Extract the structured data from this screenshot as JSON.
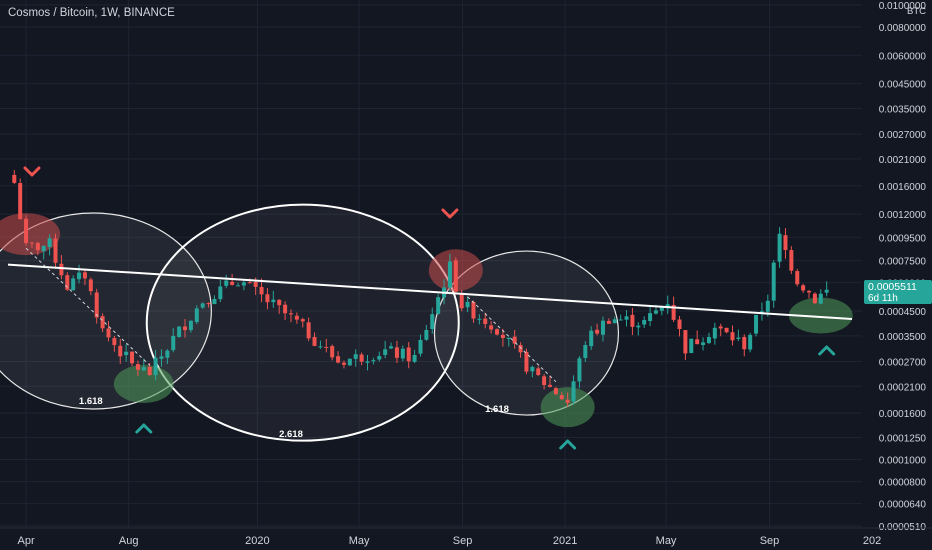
{
  "header": {
    "symbol": "Cosmos / Bitcoin",
    "interval": "1W",
    "exchange": "BINANCE",
    "separator": ", "
  },
  "colors": {
    "background": "#131722",
    "grid": "#1f2433",
    "up": "#26a69a",
    "down": "#ef5350",
    "text": "#b2b5be",
    "axis_text": "#d1d4dc",
    "price_tag": "#26a69a",
    "trendline": "#ffffff",
    "marker_red": "#ef5350",
    "marker_green": "#26a69a",
    "zone_red": "#c94c4c",
    "zone_green": "#4f9a5a"
  },
  "chart_data": {
    "type": "candlestick",
    "title": "Cosmos / Bitcoin, 1W, BINANCE",
    "y_scale": "log",
    "y_unit": "BTC",
    "ylim": [
      5e-05,
      0.0105
    ],
    "xlim": [
      "2019-03-01",
      "2021-12-20"
    ],
    "x_ticks": [
      {
        "label": "Apr",
        "date": "2019-04-01"
      },
      {
        "label": "Aug",
        "date": "2019-08-01"
      },
      {
        "label": "2020",
        "date": "2020-01-01"
      },
      {
        "label": "May",
        "date": "2020-05-01"
      },
      {
        "label": "Sep",
        "date": "2020-09-01"
      },
      {
        "label": "2021",
        "date": "2021-01-01"
      },
      {
        "label": "May",
        "date": "2021-05-01"
      },
      {
        "label": "Sep",
        "date": "2021-09-01"
      },
      {
        "label": "202",
        "date": "2022-01-01"
      }
    ],
    "y_ticks": [
      "0.0100000",
      "0.0080000",
      "0.0060000",
      "0.0045000",
      "0.0035000",
      "0.0027000",
      "0.0021000",
      "0.0016000",
      "0.0012000",
      "0.0009500",
      "0.0007500",
      "0.0006000",
      "0.0004500",
      "0.0003500",
      "0.0002700",
      "0.0002100",
      "0.0001600",
      "0.0001250",
      "0.0001000",
      "0.0000800",
      "0.0000640",
      "0.0000510"
    ],
    "y_tick_values": [
      0.01,
      0.008,
      0.006,
      0.0045,
      0.0035,
      0.0027,
      0.0021,
      0.0016,
      0.0012,
      0.00095,
      0.00075,
      0.0006,
      0.00045,
      0.00035,
      0.00027,
      0.00021,
      0.00016,
      0.000125,
      0.0001,
      8e-05,
      6.4e-05,
      5.1e-05
    ],
    "unit_label": "BTC",
    "last_price": "0.0005511",
    "countdown": "6d 11h",
    "last_price_value": 0.0005511,
    "anchors": [
      [
        "2019-03-18",
        0.00165
      ],
      [
        "2019-04-01",
        0.00085
      ],
      [
        "2019-04-29",
        0.00088
      ],
      [
        "2019-05-20",
        0.00058
      ],
      [
        "2019-06-10",
        0.00065
      ],
      [
        "2019-07-01",
        0.00037
      ],
      [
        "2019-08-05",
        0.00026
      ],
      [
        "2019-08-26",
        0.00024
      ],
      [
        "2019-09-23",
        0.00034
      ],
      [
        "2019-10-28",
        0.0005
      ],
      [
        "2019-12-09",
        0.00062
      ],
      [
        "2020-01-06",
        0.00052
      ],
      [
        "2020-02-17",
        0.0004
      ],
      [
        "2020-04-06",
        0.00027
      ],
      [
        "2020-06-01",
        0.0003
      ],
      [
        "2020-07-06",
        0.00028
      ],
      [
        "2020-08-17",
        0.0007
      ],
      [
        "2020-08-31",
        0.00048
      ],
      [
        "2020-10-12",
        0.00038
      ],
      [
        "2020-11-23",
        0.00024
      ],
      [
        "2021-01-04",
        0.00018
      ],
      [
        "2021-01-25",
        0.00033
      ],
      [
        "2021-02-22",
        0.00042
      ],
      [
        "2021-04-05",
        0.0004
      ],
      [
        "2021-05-03",
        0.0005
      ],
      [
        "2021-05-24",
        0.00031
      ],
      [
        "2021-06-28",
        0.00038
      ],
      [
        "2021-08-02",
        0.00032
      ],
      [
        "2021-08-30",
        0.00052
      ],
      [
        "2021-09-13",
        0.00095
      ],
      [
        "2021-10-04",
        0.00062
      ],
      [
        "2021-10-25",
        0.00051
      ],
      [
        "2021-11-08",
        0.00055
      ]
    ],
    "annotations": [
      {
        "type": "text",
        "text": "1.618"
      },
      {
        "type": "text",
        "text": "2.618"
      },
      {
        "type": "text",
        "text": "1.618"
      }
    ]
  }
}
